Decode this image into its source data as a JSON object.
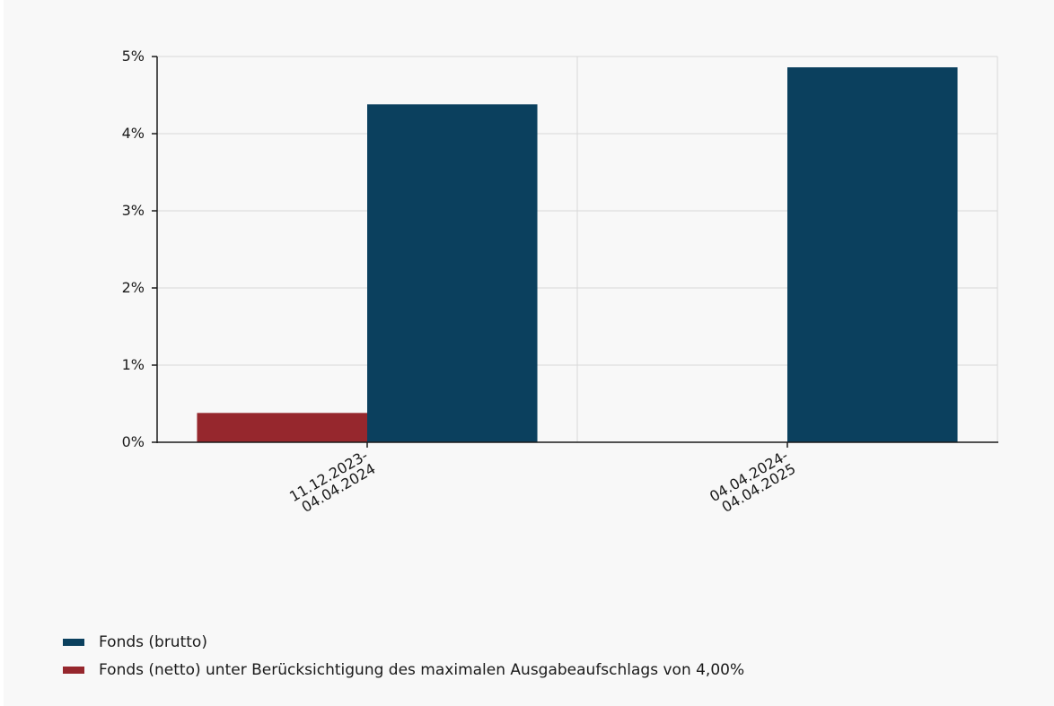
{
  "chart_data": {
    "type": "bar",
    "categories": [
      [
        "11.12.2023-",
        "04.04.2024"
      ],
      [
        "04.04.2024-",
        "04.04.2025"
      ]
    ],
    "series": [
      {
        "name": "Fonds (netto) unter Berücksichtigung des maximalen Ausgabeaufschlags von 4,00%",
        "color": "#96272d",
        "values": [
          0.38,
          null
        ]
      },
      {
        "name": "Fonds (brutto)",
        "color": "#0b405e",
        "values": [
          4.38,
          4.86
        ]
      }
    ],
    "yticks": [
      "0%",
      "1%",
      "2%",
      "3%",
      "4%",
      "5%"
    ],
    "ylim": [
      0,
      5
    ],
    "grid": true,
    "legend_position": "bottom-left",
    "legend": [
      {
        "label": "Fonds (brutto)",
        "color": "#0b405e"
      },
      {
        "label": "Fonds (netto) unter Berücksichtigung des maximalen Ausgabeaufschlags von 4,00%",
        "color": "#96272d"
      }
    ]
  }
}
